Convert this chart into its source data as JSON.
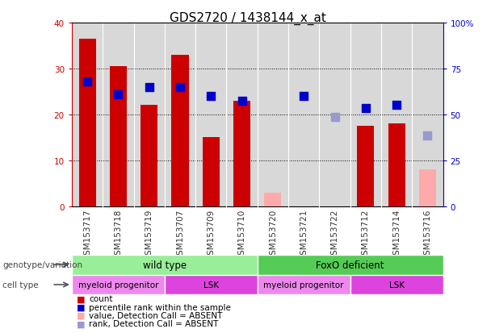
{
  "title": "GDS2720 / 1438144_x_at",
  "samples": [
    "GSM153717",
    "GSM153718",
    "GSM153719",
    "GSM153707",
    "GSM153709",
    "GSM153710",
    "GSM153720",
    "GSM153721",
    "GSM153722",
    "GSM153712",
    "GSM153714",
    "GSM153716"
  ],
  "count_values": [
    36.5,
    30.5,
    22.0,
    33.0,
    15.0,
    23.0,
    null,
    null,
    null,
    17.5,
    18.0,
    null
  ],
  "count_absent_values": [
    null,
    null,
    null,
    null,
    null,
    null,
    3.0,
    null,
    null,
    null,
    null,
    8.0
  ],
  "rank_pct_values": [
    68.0,
    61.0,
    65.0,
    65.0,
    60.0,
    57.5,
    null,
    60.0,
    null,
    53.5,
    55.0,
    null
  ],
  "rank_pct_absent": [
    null,
    null,
    null,
    null,
    null,
    null,
    null,
    null,
    48.5,
    null,
    null,
    38.5
  ],
  "count_color": "#cc0000",
  "count_absent_color": "#ffaaaa",
  "rank_color": "#0000cc",
  "rank_absent_color": "#9999cc",
  "ylim_left": [
    0,
    40
  ],
  "ylim_right": [
    0,
    100
  ],
  "yticks_left": [
    0,
    10,
    20,
    30,
    40
  ],
  "yticks_right": [
    0,
    25,
    50,
    75,
    100
  ],
  "ytick_labels_right": [
    "0",
    "25",
    "50",
    "75",
    "100%"
  ],
  "genotype_groups": [
    {
      "label": "wild type",
      "start": 0,
      "end": 6,
      "color": "#99ee99"
    },
    {
      "label": "FoxO deficient",
      "start": 6,
      "end": 12,
      "color": "#55cc55"
    }
  ],
  "cell_type_groups": [
    {
      "label": "myeloid progenitor",
      "start": 0,
      "end": 3,
      "color": "#ee88ee"
    },
    {
      "label": "LSK",
      "start": 3,
      "end": 6,
      "color": "#dd44dd"
    },
    {
      "label": "myeloid progenitor",
      "start": 6,
      "end": 9,
      "color": "#ee88ee"
    },
    {
      "label": "LSK",
      "start": 9,
      "end": 12,
      "color": "#dd44dd"
    }
  ],
  "bar_width": 0.55,
  "rank_marker_size": 45,
  "plot_bg_color": "#d8d8d8",
  "title_fontsize": 11,
  "tick_fontsize": 7.5,
  "legend_items": [
    {
      "color": "#cc0000",
      "label": "count"
    },
    {
      "color": "#0000cc",
      "label": "percentile rank within the sample"
    },
    {
      "color": "#ffaaaa",
      "label": "value, Detection Call = ABSENT"
    },
    {
      "color": "#9999cc",
      "label": "rank, Detection Call = ABSENT"
    }
  ]
}
